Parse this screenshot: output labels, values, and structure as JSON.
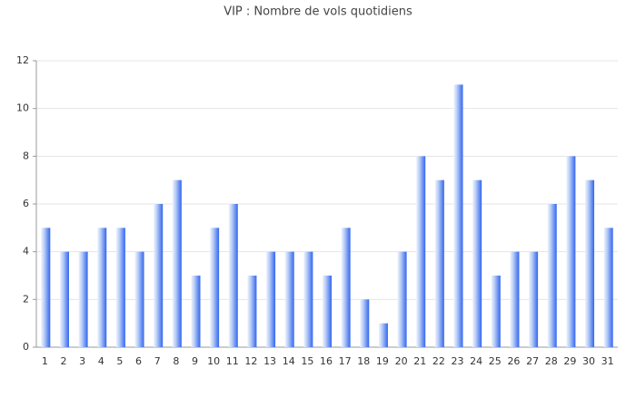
{
  "chart_data": {
    "type": "bar",
    "title": "VIP : Nombre de vols quotidiens",
    "categories": [
      "1",
      "2",
      "3",
      "4",
      "5",
      "6",
      "7",
      "8",
      "9",
      "10",
      "11",
      "12",
      "13",
      "14",
      "15",
      "16",
      "17",
      "18",
      "19",
      "20",
      "21",
      "22",
      "23",
      "24",
      "25",
      "26",
      "27",
      "28",
      "29",
      "30",
      "31"
    ],
    "values": [
      5,
      4,
      4,
      5,
      5,
      4,
      6,
      7,
      3,
      5,
      6,
      3,
      4,
      4,
      4,
      3,
      5,
      2,
      1,
      4,
      8,
      7,
      11,
      7,
      3,
      4,
      4,
      6,
      8,
      7,
      5
    ],
    "color": "#3366ee",
    "ylim": [
      0,
      12
    ],
    "yticks": [
      0,
      2,
      4,
      6,
      8,
      10,
      12
    ],
    "grid": true
  }
}
